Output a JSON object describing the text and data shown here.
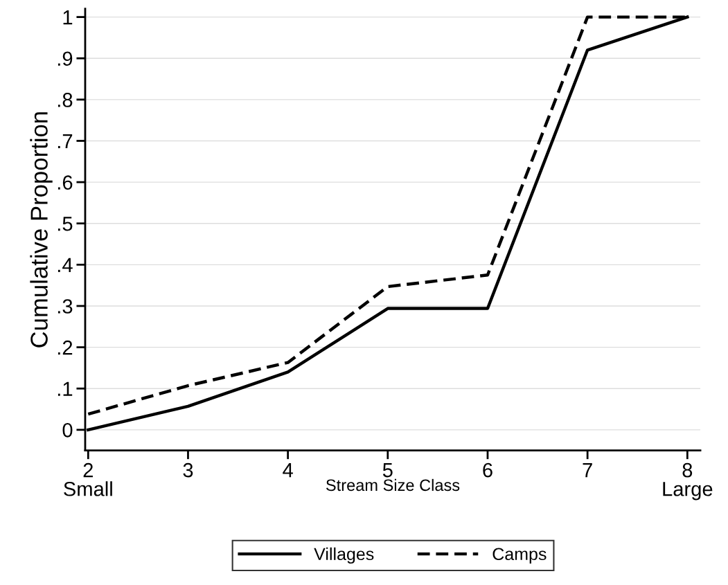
{
  "chart_data": {
    "type": "line",
    "xlabel": "Stream Size Class",
    "ylabel": "Cumulative Proportion",
    "x": [
      2,
      3,
      4,
      5,
      6,
      7,
      8
    ],
    "series": [
      {
        "name": "Villages",
        "color": "#000000",
        "line_style": "solid",
        "values": [
          0,
          0.057,
          0.14,
          0.294,
          0.294,
          0.92,
          1
        ]
      },
      {
        "name": "Camps",
        "color": "#000000",
        "line_style": "dashed",
        "values": [
          0.038,
          0.107,
          0.163,
          0.347,
          0.375,
          1,
          1
        ]
      }
    ],
    "xlim": [
      1.97,
      8.13
    ],
    "ylim": [
      -0.05,
      1.02
    ],
    "xticks": [
      {
        "value": 2,
        "label": "2\nSmall"
      },
      3,
      4,
      5,
      6,
      7,
      {
        "value": 8,
        "label": "8\nLarge"
      }
    ],
    "yticks": [
      0,
      {
        "value": 0.1,
        "label": ".1"
      },
      {
        "value": 0.2,
        "label": ".2"
      },
      {
        "value": 0.3,
        "label": ".3"
      },
      {
        "value": 0.4,
        "label": ".4"
      },
      {
        "value": 0.5,
        "label": ".5"
      },
      {
        "value": 0.6,
        "label": ".6"
      },
      {
        "value": 0.7,
        "label": ".7"
      },
      {
        "value": 0.8,
        "label": ".8"
      },
      {
        "value": 0.9,
        "label": ".9"
      },
      1
    ],
    "grid": "y",
    "legend": "bottom",
    "marker": "none"
  }
}
